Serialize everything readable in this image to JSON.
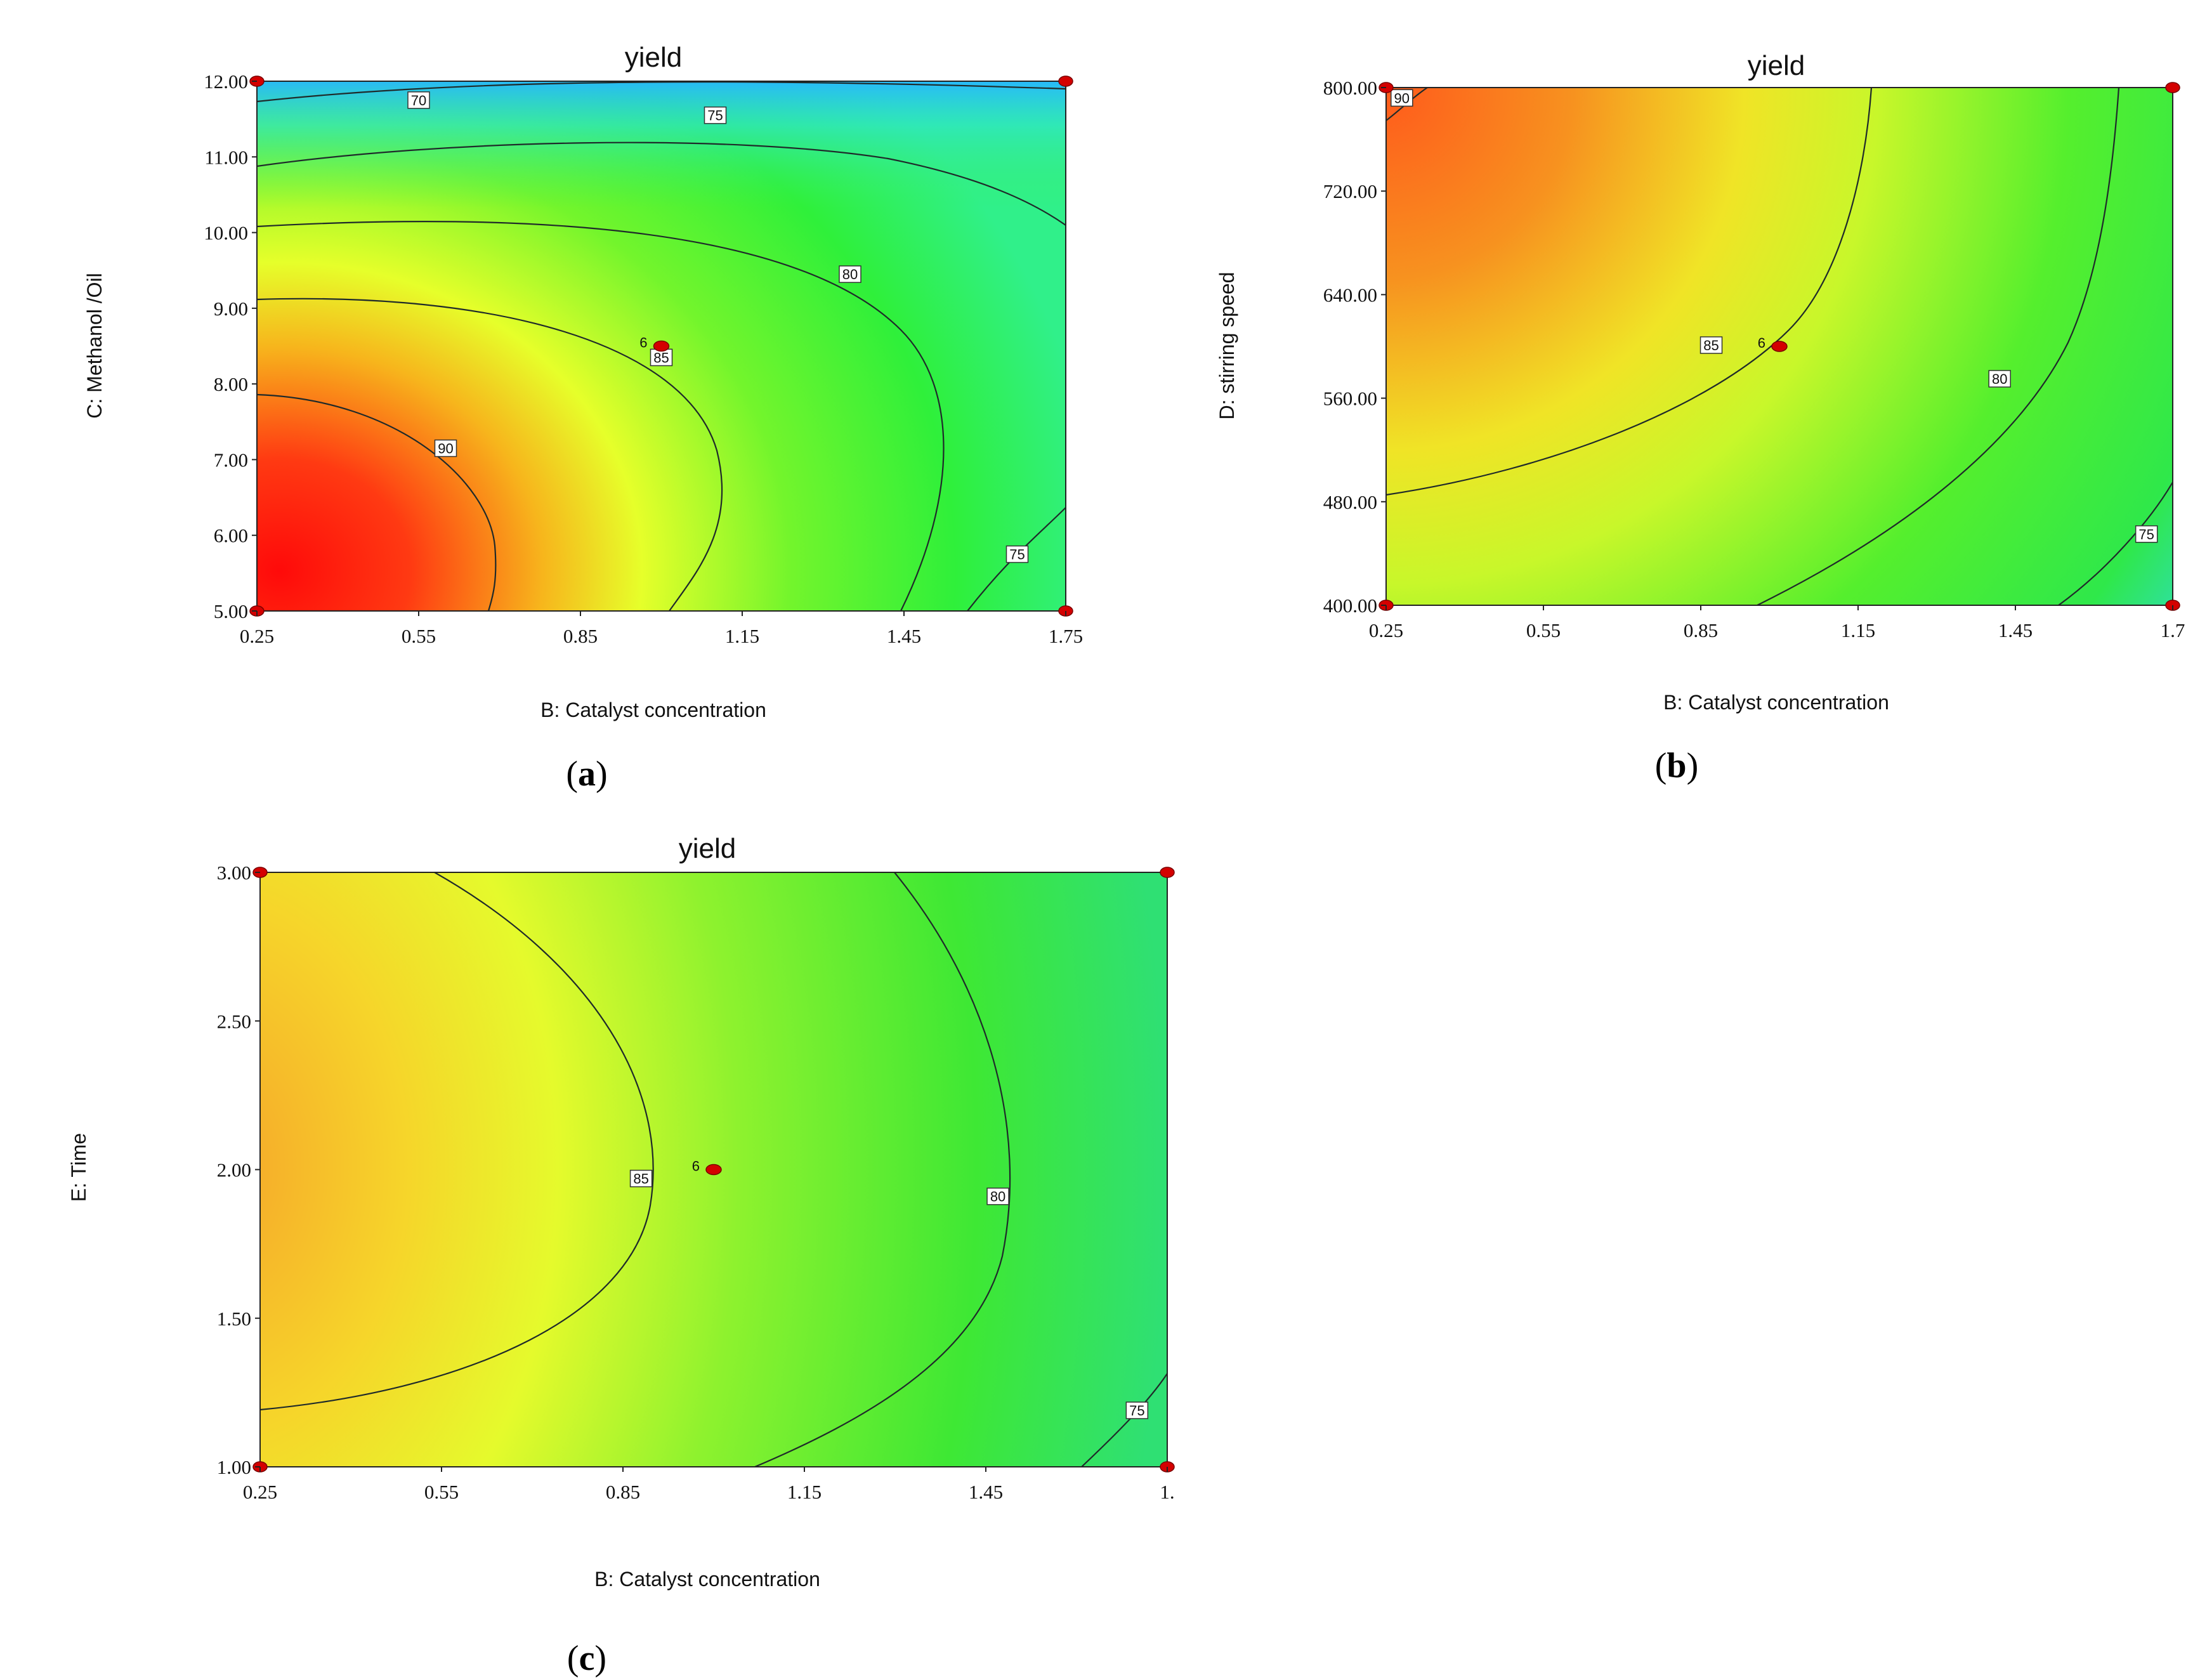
{
  "chart_data": [
    {
      "type": "contour",
      "panel_label": "a",
      "title": "yield",
      "xlabel": "B: Catalyst concentration",
      "ylabel": "C: Methanol /Oil",
      "xlim": [
        0.25,
        1.75
      ],
      "ylim": [
        5.0,
        12.0
      ],
      "x_ticks": [
        "0.25",
        "0.55",
        "0.85",
        "1.15",
        "1.45",
        "1.75"
      ],
      "y_ticks": [
        "5.00",
        "6.00",
        "7.00",
        "8.00",
        "9.00",
        "10.00",
        "11.00",
        "12.00"
      ],
      "contour_levels": [
        "70",
        "75",
        "80",
        "85",
        "90"
      ],
      "design_point": {
        "x": 1.0,
        "y": 8.5,
        "label": "6"
      },
      "corner_points": [
        [
          0.25,
          5.0
        ],
        [
          0.25,
          12.0
        ],
        [
          1.75,
          5.0
        ],
        [
          1.75,
          12.0
        ]
      ]
    },
    {
      "type": "contour",
      "panel_label": "b",
      "title": "yield",
      "xlabel": "B: Catalyst concentration",
      "ylabel": "D: stirring speed",
      "xlim": [
        0.25,
        1.75
      ],
      "ylim": [
        400.0,
        800.0
      ],
      "x_ticks": [
        "0.25",
        "0.55",
        "0.85",
        "1.15",
        "1.45",
        "1.7"
      ],
      "y_ticks": [
        "400.00",
        "480.00",
        "560.00",
        "640.00",
        "720.00",
        "800.00"
      ],
      "contour_levels": [
        "75",
        "80",
        "85",
        "90"
      ],
      "design_point": {
        "x": 1.0,
        "y": 600.0,
        "label": "6"
      },
      "corner_points": [
        [
          0.25,
          400.0
        ],
        [
          0.25,
          800.0
        ],
        [
          1.75,
          400.0
        ],
        [
          1.75,
          800.0
        ]
      ]
    },
    {
      "type": "contour",
      "panel_label": "c",
      "title": "yield",
      "xlabel": "B: Catalyst concentration",
      "ylabel": "E: Time",
      "xlim": [
        0.25,
        1.75
      ],
      "ylim": [
        1.0,
        3.0
      ],
      "x_ticks": [
        "0.25",
        "0.55",
        "0.85",
        "1.15",
        "1.45",
        "1."
      ],
      "y_ticks": [
        "1.00",
        "1.50",
        "2.00",
        "2.50",
        "3.00"
      ],
      "contour_levels": [
        "75",
        "80",
        "85"
      ],
      "design_point": {
        "x": 1.0,
        "y": 2.0,
        "label": "6"
      },
      "corner_points": [
        [
          0.25,
          1.0
        ],
        [
          0.25,
          3.0
        ],
        [
          1.75,
          1.0
        ],
        [
          1.75,
          3.0
        ]
      ]
    }
  ]
}
